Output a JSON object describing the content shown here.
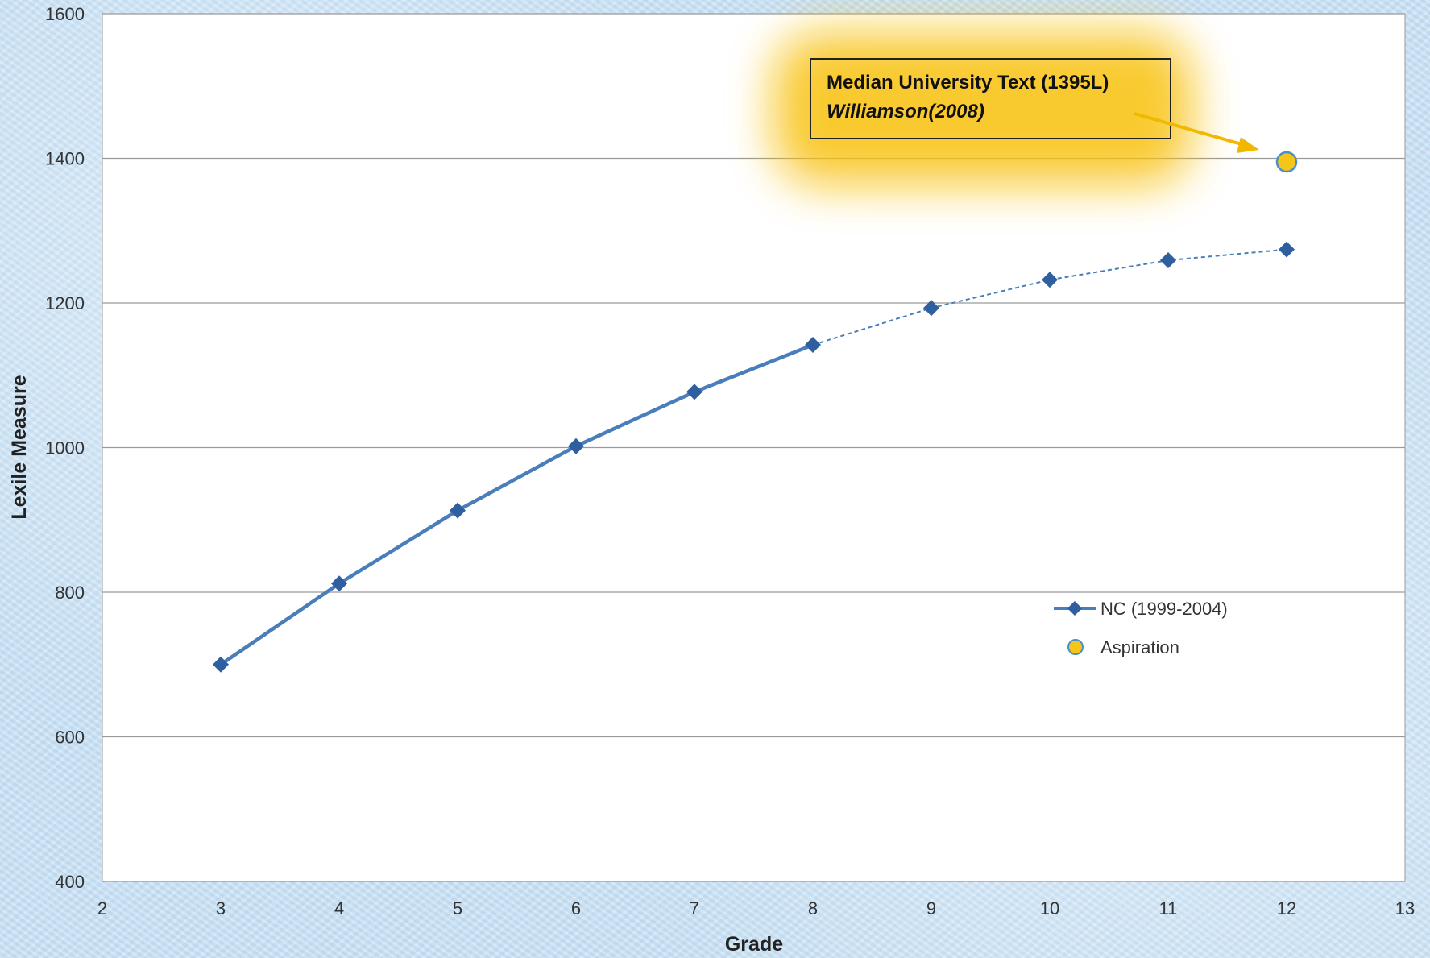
{
  "chart_data": {
    "type": "line",
    "xlabel": "Grade",
    "ylabel": "Lexile Measure",
    "xlim": [
      2,
      13
    ],
    "ylim": [
      400,
      1600
    ],
    "x_ticks": [
      "2",
      "3",
      "4",
      "5",
      "6",
      "7",
      "8",
      "9",
      "10",
      "11",
      "12",
      "13"
    ],
    "y_ticks": [
      "400",
      "600",
      "800",
      "1000",
      "1200",
      "1400",
      "1600"
    ],
    "grid": "horizontal",
    "legend_position": "lower-right",
    "series": [
      {
        "name": "NC (1999-2004)",
        "color": "#4a7ebb",
        "marker": "diamond",
        "x": [
          3,
          4,
          5,
          6,
          7,
          8,
          9,
          10,
          11,
          12
        ],
        "y": [
          700,
          812,
          913,
          1002,
          1077,
          1142,
          1193,
          1232,
          1259,
          1274
        ],
        "style_note": "solid line for grades 3-8, dashed for grades 8-12"
      },
      {
        "name": "Aspiration",
        "color": "#f5c518",
        "marker": "circle",
        "x": [
          12
        ],
        "y": [
          1395
        ]
      }
    ],
    "annotation": {
      "line1": "Median University Text (1395L)",
      "line2": "Williamson(2008)",
      "arrow_color": "#f0b800",
      "glow_color": "#f8c10a"
    }
  }
}
